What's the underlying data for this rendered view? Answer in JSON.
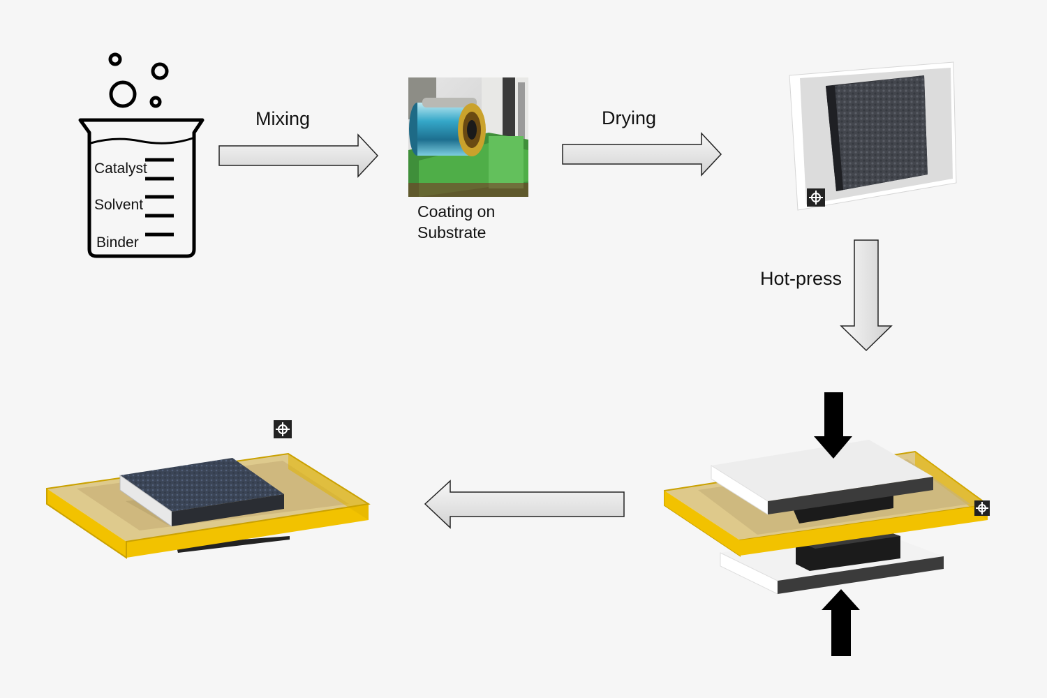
{
  "steps": {
    "mixing": "Mixing",
    "drying": "Drying",
    "hotpress": "Hot-press",
    "coating_line1": "Coating on",
    "coating_line2": "Substrate"
  },
  "beaker": {
    "catalyst": "Catalyst",
    "solvent": "Solvent",
    "binder": "Binder"
  },
  "colors": {
    "background": "#f6f6f6",
    "arrow_fill": "#e4e4e4",
    "frame_yellow": "#f2c200",
    "catalyst_layer": "#3a4150",
    "press_plate": "#ececec",
    "press_edge": "#3c3c3c"
  },
  "icons": {
    "beaker": "beaker-icon",
    "coating_machine": "coating-machine-photo",
    "dried_sheet": "dried-electrode-photo",
    "hot_press": "hot-press-illustration",
    "final_electrode": "final-electrode-illustration",
    "crosshair": "crosshair-icon"
  }
}
